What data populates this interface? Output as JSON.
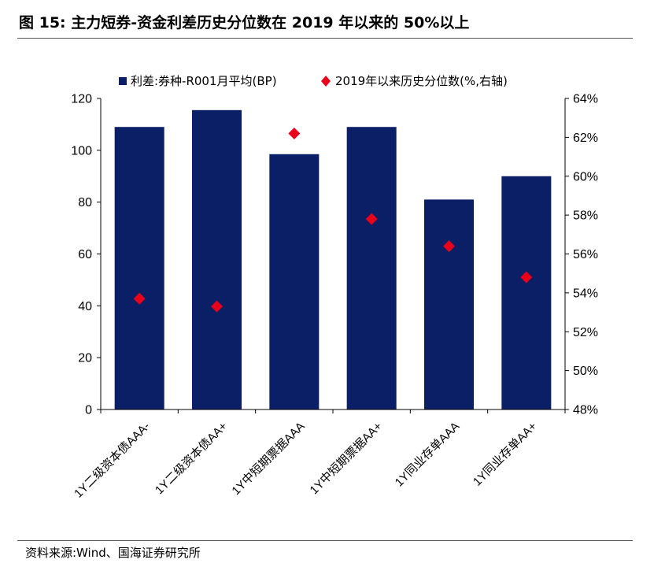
{
  "title": "图 15:  主力短券-资金利差历史分位数在 2019 年以来的 50%以上",
  "source": "资料来源:Wind、国海证券研究所",
  "colors": {
    "bar": "#0b1f66",
    "marker": "#e8001b",
    "axis": "#000000",
    "text": "#000000"
  },
  "chart_data": {
    "type": "bar",
    "categories": [
      "1Y二级资本债AAA-",
      "1Y二级资本债AA+",
      "1Y中短期票据AAA",
      "1Y中短期票据AA+",
      "1Y同业存单AAA",
      "1Y同业存单AA+"
    ],
    "series": [
      {
        "name": "利差:券种-R001月平均(BP)",
        "type": "bar",
        "axis": "left",
        "values": [
          109,
          115.5,
          98.5,
          109,
          81,
          90
        ]
      },
      {
        "name": "2019年以来历史分位数(%,右轴)",
        "type": "scatter",
        "marker": "diamond",
        "axis": "right",
        "values": [
          53.7,
          53.3,
          62.2,
          57.8,
          56.4,
          54.8
        ]
      }
    ],
    "y_left": {
      "lim": [
        0,
        120
      ],
      "ticks": [
        0,
        20,
        40,
        60,
        80,
        100,
        120
      ]
    },
    "y_right": {
      "lim": [
        48,
        64
      ],
      "ticks": [
        48,
        50,
        52,
        54,
        56,
        58,
        60,
        62,
        64
      ],
      "tick_format": "{v}%"
    },
    "legend_placement": "top",
    "grid": false
  }
}
